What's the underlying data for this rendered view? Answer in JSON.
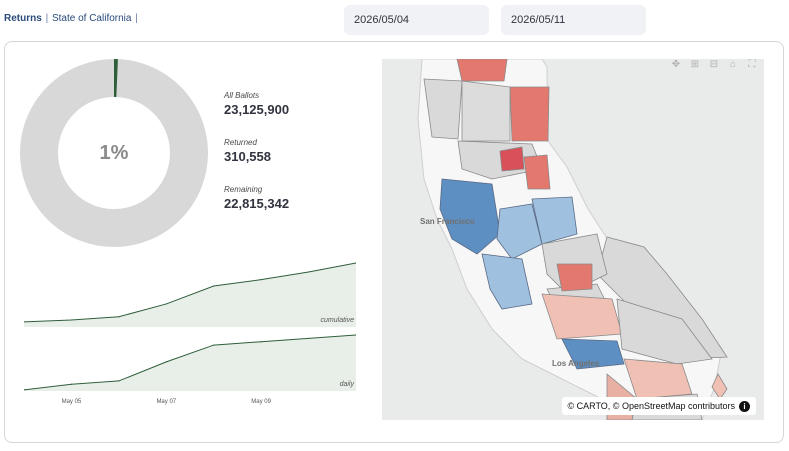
{
  "breadcrumb": {
    "active": "Returns",
    "separator": "|",
    "item": "State of California",
    "trailing_separator": "|"
  },
  "filters": {
    "start_date": "2026/05/04",
    "end_date": "2026/05/11"
  },
  "summary": {
    "percent_returned_label": "1%",
    "percent_returned": 0.0134,
    "all_ballots_label": "All Ballots",
    "all_ballots": "23,125,900",
    "returned_label": "Returned",
    "returned": "310,558",
    "remaining_label": "Remaining",
    "remaining": "22,815,342",
    "colors": {
      "returned": "#2e5e3a",
      "remaining": "#d8d8d8"
    }
  },
  "chart_data": [
    {
      "type": "area",
      "name": "cumulative",
      "x": [
        "May 04",
        "May 05",
        "May 06",
        "May 07",
        "May 08",
        "May 09",
        "May 10",
        "May 11"
      ],
      "values": [
        0.08,
        0.11,
        0.16,
        0.36,
        0.64,
        0.74,
        0.86,
        1.0
      ],
      "color": "#2e5e3a",
      "fill": "#e8efe9"
    },
    {
      "type": "area",
      "name": "daily",
      "x": [
        "May 04",
        "May 05",
        "May 06",
        "May 07",
        "May 08",
        "May 09",
        "May 10",
        "May 11"
      ],
      "values": [
        0.02,
        0.12,
        0.18,
        0.52,
        0.82,
        0.88,
        0.94,
        1.0
      ],
      "color": "#2e5e3a",
      "fill": "#e8efe9"
    }
  ],
  "x_axis": {
    "ticks": [
      "May 05",
      "May 07",
      "May 09"
    ]
  },
  "map": {
    "city_sf": "San Francisco",
    "city_la": "Los Angeles",
    "attribution": "© CARTO, © OpenStreetMap contributors",
    "tools": [
      "pan-icon",
      "zoom-in-icon",
      "zoom-out-icon",
      "home-icon",
      "fullscreen-icon"
    ],
    "colors": {
      "water": "#e9eaea",
      "land": "#f7f7f7",
      "neutral": "#d9d9d9",
      "blue": "#9fc0df",
      "blue_dark": "#5d8fc2",
      "red": "#e2786e",
      "red_light": "#f0c0b4"
    }
  }
}
